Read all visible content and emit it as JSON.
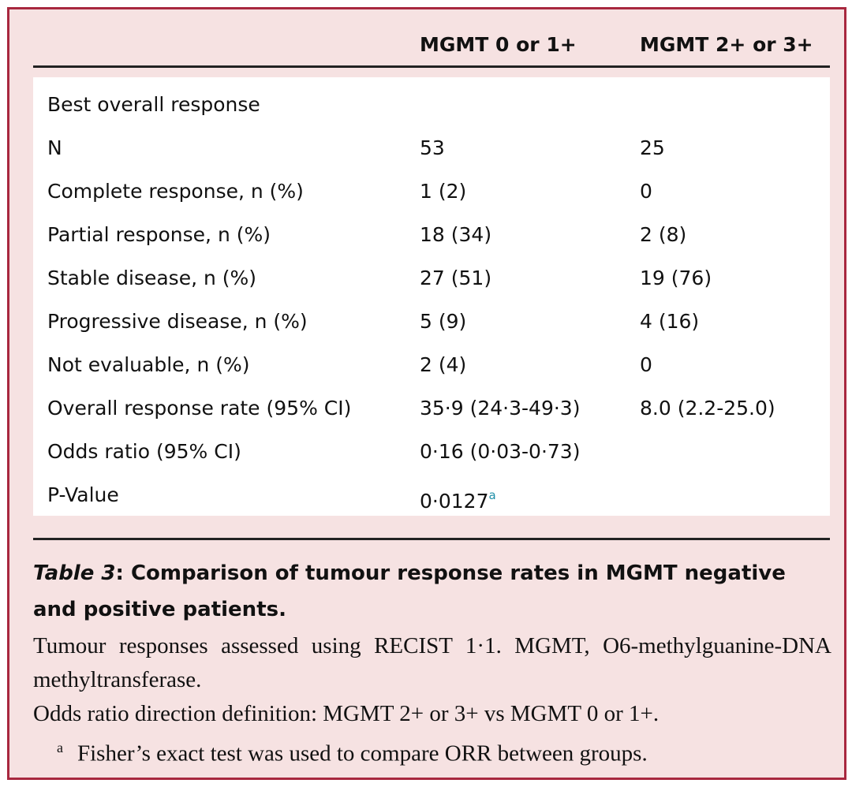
{
  "table": {
    "headers": [
      "MGMT 0 or 1+",
      "MGMT 2+ or 3+"
    ],
    "rows": [
      {
        "label": "Best overall response"
      },
      {
        "label": "N",
        "cells": [
          "53",
          "25"
        ]
      },
      {
        "label": "Complete response, n (%)",
        "cells": [
          "1 (2)",
          "0"
        ]
      },
      {
        "label": "Partial response, n (%)",
        "cells": [
          "18 (34)",
          "2 (8)"
        ]
      },
      {
        "label": "Stable disease, n (%)",
        "cells": [
          "27 (51)",
          "19 (76)"
        ]
      },
      {
        "label": "Progressive disease, n (%)",
        "cells": [
          "5 (9)",
          "4 (16)"
        ]
      },
      {
        "label": "Not evaluable, n (%)",
        "cells": [
          "2 (4)",
          "0"
        ]
      },
      {
        "label": "Overall response rate (95% CI)",
        "cells": [
          "35·9 (24·3-49·3)",
          "8.0 (2.2-25.0)"
        ]
      },
      {
        "label": "Odds ratio (95% CI)",
        "cells": [
          "0·16 (0·03-0·73)"
        ]
      },
      {
        "label": "P-Value",
        "cells": [
          "0·0127"
        ],
        "note": "a"
      }
    ]
  },
  "caption": {
    "label": "Table 3",
    "text": ": Comparison of tumour response rates in MGMT negative and positive patients."
  },
  "notes": [
    "Tumour responses assessed using RECIST 1·1. MGMT, O6-methylguanine-DNA methyltransferase.",
    "Odds ratio direction definition: MGMT 2+ or 3+ vs MGMT 0 or 1+."
  ],
  "footnote": {
    "marker": "a",
    "text": "Fisher’s exact test was used to compare ORR between groups."
  }
}
